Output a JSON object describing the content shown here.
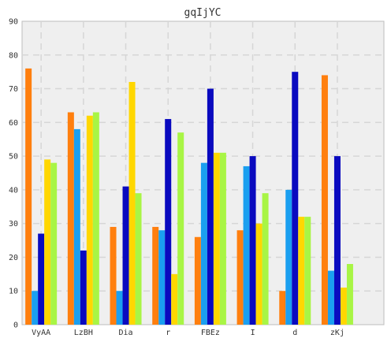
{
  "chart_data": {
    "type": "bar",
    "title": "gqIjYC",
    "xlabel": "",
    "ylabel": "",
    "categories": [
      "VyAA",
      "LzBH",
      "Dia",
      "r",
      "FBEz",
      "I",
      "d",
      "zKj"
    ],
    "ylim": [
      0,
      90
    ],
    "yticks": [
      0,
      10,
      20,
      30,
      40,
      50,
      60,
      70,
      80,
      90
    ],
    "grid": true,
    "legend": "none",
    "series": [
      {
        "color": "#ff7f0e",
        "values": [
          76,
          63,
          29,
          29,
          26,
          28,
          10,
          74
        ]
      },
      {
        "color": "#1a9ff0",
        "values": [
          10,
          58,
          10,
          28,
          48,
          47,
          40,
          16
        ]
      },
      {
        "color": "#0a0abf",
        "values": [
          27,
          22,
          41,
          61,
          70,
          50,
          75,
          50
        ]
      },
      {
        "color": "#ffd700",
        "values": [
          49,
          62,
          72,
          15,
          51,
          30,
          32,
          11
        ]
      },
      {
        "color": "#a8f545",
        "values": [
          48,
          63,
          39,
          57,
          51,
          39,
          32,
          18
        ]
      }
    ]
  }
}
